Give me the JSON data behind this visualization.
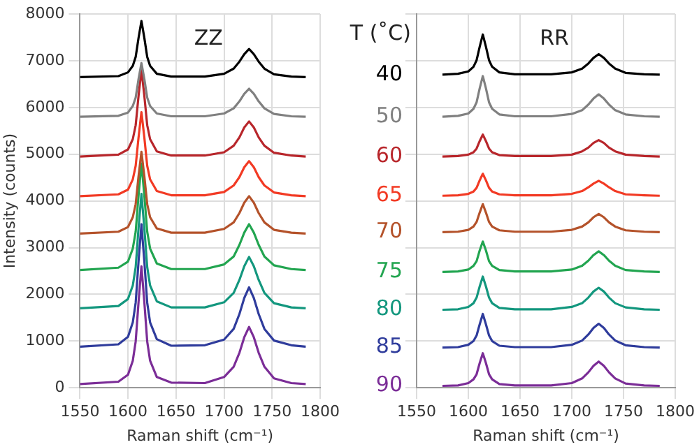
{
  "chart_data": [
    {
      "type": "line",
      "title": "ZZ",
      "xlabel": "Raman shift (cm⁻¹)",
      "ylabel": "Intensity (counts)",
      "xlim": [
        1550,
        1800
      ],
      "xticks": [
        1550,
        1600,
        1650,
        1700,
        1750,
        1800
      ],
      "ylim": [
        0,
        8000
      ],
      "yticks": [
        0,
        1000,
        2000,
        3000,
        4000,
        5000,
        6000,
        7000,
        8000
      ],
      "grid": true,
      "x": [
        1550,
        1590,
        1600,
        1605,
        1608,
        1611,
        1614,
        1617,
        1620,
        1623,
        1630,
        1645,
        1680,
        1700,
        1710,
        1716,
        1721,
        1726,
        1731,
        1736,
        1742,
        1752,
        1770,
        1785
      ],
      "series": [
        {
          "color": "#000000",
          "values": [
            6650,
            6670,
            6750,
            6890,
            7080,
            7490,
            7850,
            7490,
            7080,
            6890,
            6720,
            6660,
            6660,
            6720,
            6830,
            6980,
            7140,
            7250,
            7140,
            6980,
            6830,
            6710,
            6660,
            6650
          ]
        },
        {
          "color": "#808080",
          "values": [
            5800,
            5820,
            5890,
            6030,
            6210,
            6610,
            6950,
            6610,
            6210,
            6030,
            5870,
            5810,
            5810,
            5870,
            5980,
            6130,
            6290,
            6400,
            6290,
            6130,
            5980,
            5860,
            5810,
            5800
          ]
        },
        {
          "color": "#b8262b",
          "values": [
            4950,
            4990,
            5100,
            5320,
            5620,
            6250,
            6800,
            6250,
            5620,
            5320,
            5060,
            4970,
            4970,
            5040,
            5180,
            5360,
            5570,
            5700,
            5570,
            5360,
            5180,
            5030,
            4970,
            4950
          ]
        },
        {
          "color": "#f23a24",
          "values": [
            4100,
            4140,
            4240,
            4460,
            4750,
            5360,
            5900,
            5360,
            4750,
            4460,
            4210,
            4120,
            4120,
            4190,
            4330,
            4510,
            4720,
            4850,
            4720,
            4510,
            4330,
            4180,
            4120,
            4100
          ]
        },
        {
          "color": "#b4522a",
          "values": [
            3300,
            3340,
            3440,
            3650,
            3930,
            4530,
            5050,
            4530,
            3930,
            3650,
            3410,
            3320,
            3320,
            3400,
            3540,
            3740,
            3960,
            4100,
            3960,
            3740,
            3540,
            3380,
            3320,
            3300
          ]
        },
        {
          "color": "#22a550",
          "values": [
            2520,
            2570,
            2700,
            2980,
            3340,
            4120,
            4800,
            4120,
            3340,
            2980,
            2660,
            2540,
            2540,
            2640,
            2810,
            3060,
            3320,
            3500,
            3320,
            3060,
            2810,
            2620,
            2540,
            2520
          ]
        },
        {
          "color": "#13977e",
          "values": [
            1700,
            1750,
            1900,
            2190,
            2580,
            3420,
            4150,
            3420,
            2580,
            2190,
            1850,
            1720,
            1720,
            1830,
            2030,
            2310,
            2600,
            2800,
            2600,
            2310,
            2030,
            1810,
            1720,
            1700
          ]
        },
        {
          "color": "#2f3c9c",
          "values": [
            880,
            930,
            1090,
            1400,
            1820,
            2710,
            3500,
            2710,
            1820,
            1400,
            1040,
            900,
            910,
            1030,
            1260,
            1580,
            1920,
            2150,
            1920,
            1580,
            1260,
            1010,
            910,
            880
          ]
        },
        {
          "color": "#7b2d97",
          "values": [
            80,
            130,
            280,
            580,
            990,
            1840,
            2600,
            1840,
            990,
            580,
            230,
            110,
            100,
            230,
            450,
            750,
            1080,
            1300,
            1080,
            750,
            450,
            200,
            100,
            80
          ]
        }
      ]
    },
    {
      "type": "line",
      "title": "RR",
      "xlabel": "Raman shift (cm⁻¹)",
      "legend_title": "T (˚C)",
      "xlim": [
        1550,
        1800
      ],
      "xticks": [
        1550,
        1600,
        1650,
        1700,
        1750,
        1800
      ],
      "ylim": [
        0,
        8000
      ],
      "yticks": [
        0,
        1000,
        2000,
        3000,
        4000,
        5000,
        6000,
        7000,
        8000
      ],
      "grid": true,
      "tick_labels": "x",
      "x": [
        1575,
        1590,
        1600,
        1605,
        1608,
        1611,
        1614,
        1617,
        1620,
        1623,
        1630,
        1645,
        1680,
        1700,
        1710,
        1716,
        1721,
        1726,
        1731,
        1736,
        1742,
        1752,
        1770,
        1785
      ],
      "series": [
        {
          "name": "40",
          "color": "#000000",
          "values": [
            6700,
            6720,
            6770,
            6870,
            7010,
            7300,
            7560,
            7300,
            7010,
            6870,
            6750,
            6710,
            6710,
            6750,
            6830,
            6940,
            7060,
            7140,
            7060,
            6940,
            6830,
            6740,
            6710,
            6700
          ]
        },
        {
          "name": "50",
          "color": "#808080",
          "values": [
            5800,
            5820,
            5870,
            5970,
            6110,
            6410,
            6670,
            6410,
            6110,
            5970,
            5850,
            5810,
            5810,
            5860,
            5940,
            6060,
            6190,
            6280,
            6190,
            6060,
            5940,
            5850,
            5810,
            5800
          ]
        },
        {
          "name": "60",
          "color": "#b8262b",
          "values": [
            4950,
            4960,
            4990,
            5040,
            5120,
            5280,
            5420,
            5280,
            5120,
            5040,
            4980,
            4960,
            4960,
            4990,
            5060,
            5140,
            5240,
            5300,
            5240,
            5140,
            5060,
            4990,
            4960,
            4950
          ]
        },
        {
          "name": "65",
          "color": "#f23a24",
          "values": [
            4110,
            4120,
            4150,
            4200,
            4280,
            4440,
            4580,
            4440,
            4280,
            4200,
            4140,
            4120,
            4120,
            4150,
            4210,
            4290,
            4370,
            4430,
            4370,
            4290,
            4210,
            4140,
            4120,
            4110
          ]
        },
        {
          "name": "70",
          "color": "#b4522a",
          "values": [
            3330,
            3340,
            3380,
            3450,
            3550,
            3750,
            3930,
            3750,
            3550,
            3450,
            3370,
            3340,
            3340,
            3380,
            3450,
            3540,
            3650,
            3720,
            3650,
            3540,
            3450,
            3370,
            3340,
            3330
          ]
        },
        {
          "name": "75",
          "color": "#22a550",
          "values": [
            2480,
            2490,
            2530,
            2610,
            2710,
            2940,
            3130,
            2940,
            2710,
            2610,
            2520,
            2490,
            2490,
            2530,
            2610,
            2720,
            2840,
            2920,
            2840,
            2720,
            2610,
            2520,
            2490,
            2480
          ]
        },
        {
          "name": "80",
          "color": "#13977e",
          "values": [
            1670,
            1680,
            1730,
            1810,
            1930,
            2170,
            2380,
            2170,
            1930,
            1810,
            1710,
            1680,
            1680,
            1730,
            1810,
            1930,
            2060,
            2140,
            2060,
            1930,
            1810,
            1720,
            1680,
            1670
          ]
        },
        {
          "name": "85",
          "color": "#2f3c9c",
          "values": [
            860,
            870,
            920,
            1000,
            1120,
            1360,
            1580,
            1360,
            1120,
            1000,
            900,
            870,
            870,
            920,
            1010,
            1140,
            1280,
            1370,
            1280,
            1140,
            1010,
            910,
            870,
            860
          ]
        },
        {
          "name": "90",
          "color": "#7b2d97",
          "values": [
            40,
            50,
            100,
            180,
            290,
            530,
            740,
            530,
            290,
            180,
            80,
            50,
            50,
            100,
            200,
            330,
            470,
            560,
            470,
            330,
            200,
            90,
            50,
            40
          ]
        }
      ]
    }
  ]
}
